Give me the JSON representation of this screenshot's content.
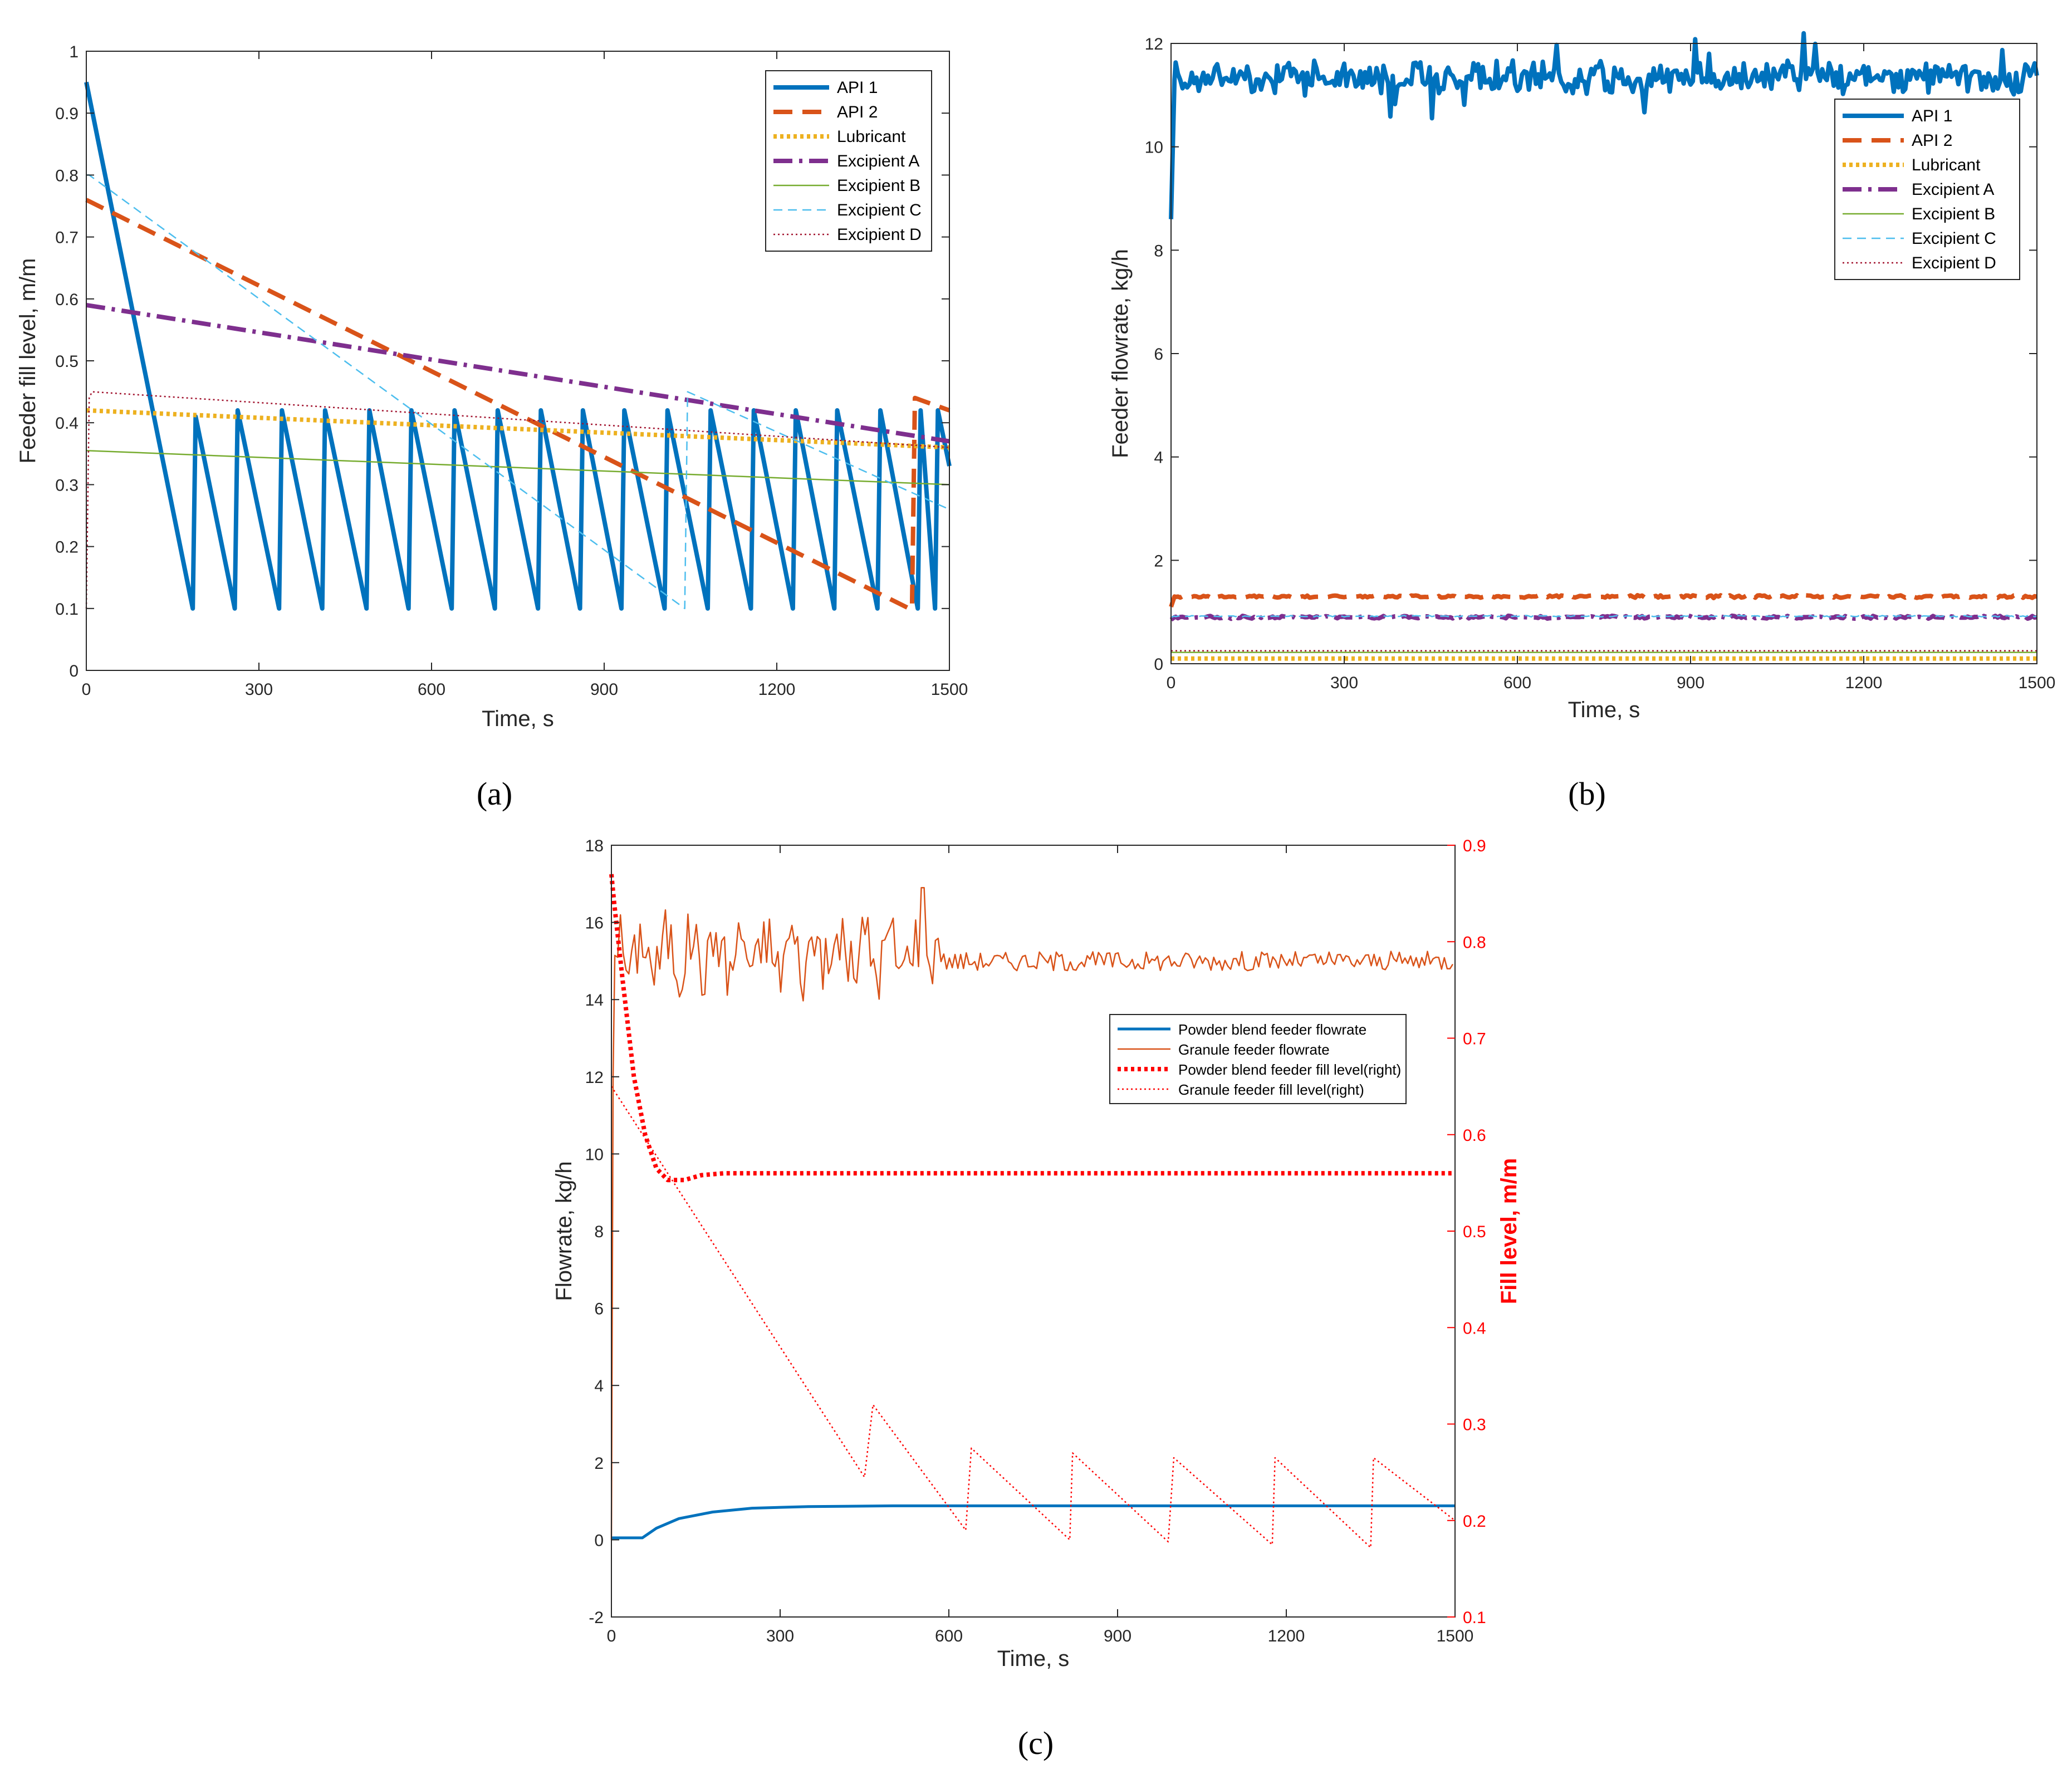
{
  "figure": {
    "captions": [
      "(a)",
      "(b)",
      "(c)"
    ]
  },
  "chart_data": [
    {
      "id": "a",
      "type": "line",
      "title": "",
      "xlabel": "Time, s",
      "ylabel": "Feeder fill level, m/m",
      "xlim": [
        0,
        1500
      ],
      "ylim": [
        0,
        1
      ],
      "xticks": [
        0,
        300,
        600,
        900,
        1200,
        1500
      ],
      "yticks": [
        0,
        0.1,
        0.2,
        0.3,
        0.4,
        0.5,
        0.6,
        0.7,
        0.8,
        0.9,
        1
      ],
      "ytick_labels": [
        "0",
        "0.1",
        "0.2",
        "0.3",
        "0.4",
        "0.5",
        "0.6",
        "0.7",
        "0.8",
        "0.9",
        "1"
      ],
      "legend_position": "top-right",
      "series": [
        {
          "name": "API 1",
          "color": "#0072BD",
          "style": "solid-thick",
          "x": [
            0,
            185,
            190,
            258,
            263,
            335,
            340,
            410,
            415,
            487,
            492,
            560,
            565,
            635,
            640,
            710,
            715,
            785,
            790,
            858,
            863,
            930,
            935,
            1005,
            1010,
            1080,
            1085,
            1155,
            1160,
            1228,
            1233,
            1300,
            1305,
            1375,
            1380,
            1445,
            1450,
            1475,
            1480,
            1500
          ],
          "values": [
            0.95,
            0.1,
            0.41,
            0.1,
            0.42,
            0.1,
            0.42,
            0.1,
            0.42,
            0.1,
            0.42,
            0.1,
            0.42,
            0.1,
            0.42,
            0.1,
            0.42,
            0.1,
            0.42,
            0.1,
            0.42,
            0.1,
            0.42,
            0.1,
            0.42,
            0.1,
            0.42,
            0.1,
            0.42,
            0.1,
            0.42,
            0.1,
            0.42,
            0.1,
            0.42,
            0.1,
            0.42,
            0.1,
            0.42,
            0.33
          ]
        },
        {
          "name": "API 2",
          "color": "#D95319",
          "style": "dashed-thick",
          "x": [
            0,
            1430,
            1435,
            1440,
            1500
          ],
          "values": [
            0.76,
            0.1,
            0.1,
            0.44,
            0.42
          ]
        },
        {
          "name": "Lubricant",
          "color": "#EDB120",
          "style": "dotted-thick",
          "x": [
            0,
            1500
          ],
          "values": [
            0.42,
            0.36
          ]
        },
        {
          "name": "Excipient A",
          "color": "#7E2F8E",
          "style": "dashdot-thick",
          "x": [
            0,
            1500
          ],
          "values": [
            0.59,
            0.37
          ]
        },
        {
          "name": "Excipient B",
          "color": "#77AC30",
          "style": "solid-thin",
          "x": [
            0,
            1500
          ],
          "values": [
            0.355,
            0.3
          ]
        },
        {
          "name": "Excipient C",
          "color": "#4DBEEE",
          "style": "dashed-thin",
          "x": [
            0,
            5,
            1040,
            1045,
            1500
          ],
          "values": [
            0.8,
            0.8,
            0.1,
            0.45,
            0.26
          ]
        },
        {
          "name": "Excipient D",
          "color": "#A2142F",
          "style": "dotted-thin",
          "x": [
            0,
            5,
            10,
            1500
          ],
          "values": [
            0.1,
            0.44,
            0.45,
            0.36
          ]
        }
      ]
    },
    {
      "id": "b",
      "type": "line",
      "title": "",
      "xlabel": "Time, s",
      "ylabel": "Feeder flowrate, kg/h",
      "xlim": [
        0,
        1500
      ],
      "ylim": [
        0,
        12
      ],
      "xticks": [
        0,
        300,
        600,
        900,
        1200,
        1500
      ],
      "yticks": [
        0,
        2,
        4,
        6,
        8,
        10,
        12
      ],
      "legend_position": "top-right",
      "series": [
        {
          "name": "API 1",
          "color": "#0072BD",
          "style": "solid-thick",
          "startup": [
            8.6,
            11.3
          ],
          "mean": 11.35,
          "noise": 0.22
        },
        {
          "name": "API 2",
          "color": "#D95319",
          "style": "dashed-thick",
          "startup": [
            1.1,
            1.3
          ],
          "mean": 1.3,
          "noise": 0.02
        },
        {
          "name": "Lubricant",
          "color": "#EDB120",
          "style": "dotted-thick",
          "startup": [
            0.1,
            0.1
          ],
          "mean": 0.1,
          "noise": 0.0
        },
        {
          "name": "Excipient A",
          "color": "#7E2F8E",
          "style": "dashdot-thick",
          "startup": [
            0.85,
            0.9
          ],
          "mean": 0.9,
          "noise": 0.02
        },
        {
          "name": "Excipient B",
          "color": "#77AC30",
          "style": "solid-thin",
          "startup": [
            0.22,
            0.22
          ],
          "mean": 0.22,
          "noise": 0.0
        },
        {
          "name": "Excipient C",
          "color": "#4DBEEE",
          "style": "dashed-thin",
          "startup": [
            0.9,
            0.92
          ],
          "mean": 0.92,
          "noise": 0.01
        },
        {
          "name": "Excipient D",
          "color": "#A2142F",
          "style": "dotted-thin",
          "startup": [
            0.25,
            0.25
          ],
          "mean": 0.25,
          "noise": 0.0
        }
      ]
    },
    {
      "id": "c",
      "type": "line",
      "title": "",
      "xlabel": "Time, s",
      "ylabel": "Flowrate, kg/h",
      "ylabel_right": "Fill level, m/m",
      "xlim": [
        0,
        1500
      ],
      "ylim": [
        -2,
        18
      ],
      "ylim_right": [
        0.1,
        0.9
      ],
      "xticks": [
        0,
        300,
        600,
        900,
        1200,
        1500
      ],
      "yticks": [
        -2,
        0,
        2,
        4,
        6,
        8,
        10,
        12,
        14,
        16,
        18
      ],
      "yticks_right": [
        0.1,
        0.2,
        0.3,
        0.4,
        0.5,
        0.6,
        0.7,
        0.8,
        0.9
      ],
      "legend_position": "center-right",
      "series": [
        {
          "name": "Powder blend feeder flowrate",
          "color": "#0072BD",
          "style": "solid-medium",
          "axis": "left",
          "x": [
            0,
            55,
            80,
            120,
            180,
            250,
            350,
            500,
            800,
            1500
          ],
          "values": [
            0.05,
            0.05,
            0.3,
            0.55,
            0.72,
            0.82,
            0.86,
            0.88,
            0.88,
            0.88
          ]
        },
        {
          "name": "Granule feeder flowrate",
          "color": "#D95319",
          "style": "solid-thin",
          "axis": "left",
          "mean_early": 15.2,
          "noise_early": 0.8,
          "mean_late": 15.0,
          "noise_late": 0.25,
          "switch_x": 590,
          "spike": [
            555,
            16.9
          ]
        },
        {
          "name": "Powder blend feeder fill level(right)",
          "color": "#FF0000",
          "style": "dotted-thick",
          "axis": "right",
          "x": [
            0,
            5,
            20,
            40,
            60,
            80,
            100,
            130,
            160,
            200,
            1500
          ],
          "values": [
            0.87,
            0.84,
            0.76,
            0.66,
            0.6,
            0.565,
            0.553,
            0.553,
            0.558,
            0.56,
            0.56
          ]
        },
        {
          "name": "Granule feeder fill level(right)",
          "color": "#FF0000",
          "style": "dotted-thin",
          "axis": "right",
          "x": [
            0,
            450,
            465,
            630,
            640,
            815,
            820,
            990,
            1000,
            1175,
            1180,
            1350,
            1355,
            1500
          ],
          "values": [
            0.65,
            0.245,
            0.32,
            0.19,
            0.275,
            0.18,
            0.27,
            0.178,
            0.265,
            0.175,
            0.265,
            0.172,
            0.265,
            0.2
          ]
        }
      ]
    }
  ]
}
